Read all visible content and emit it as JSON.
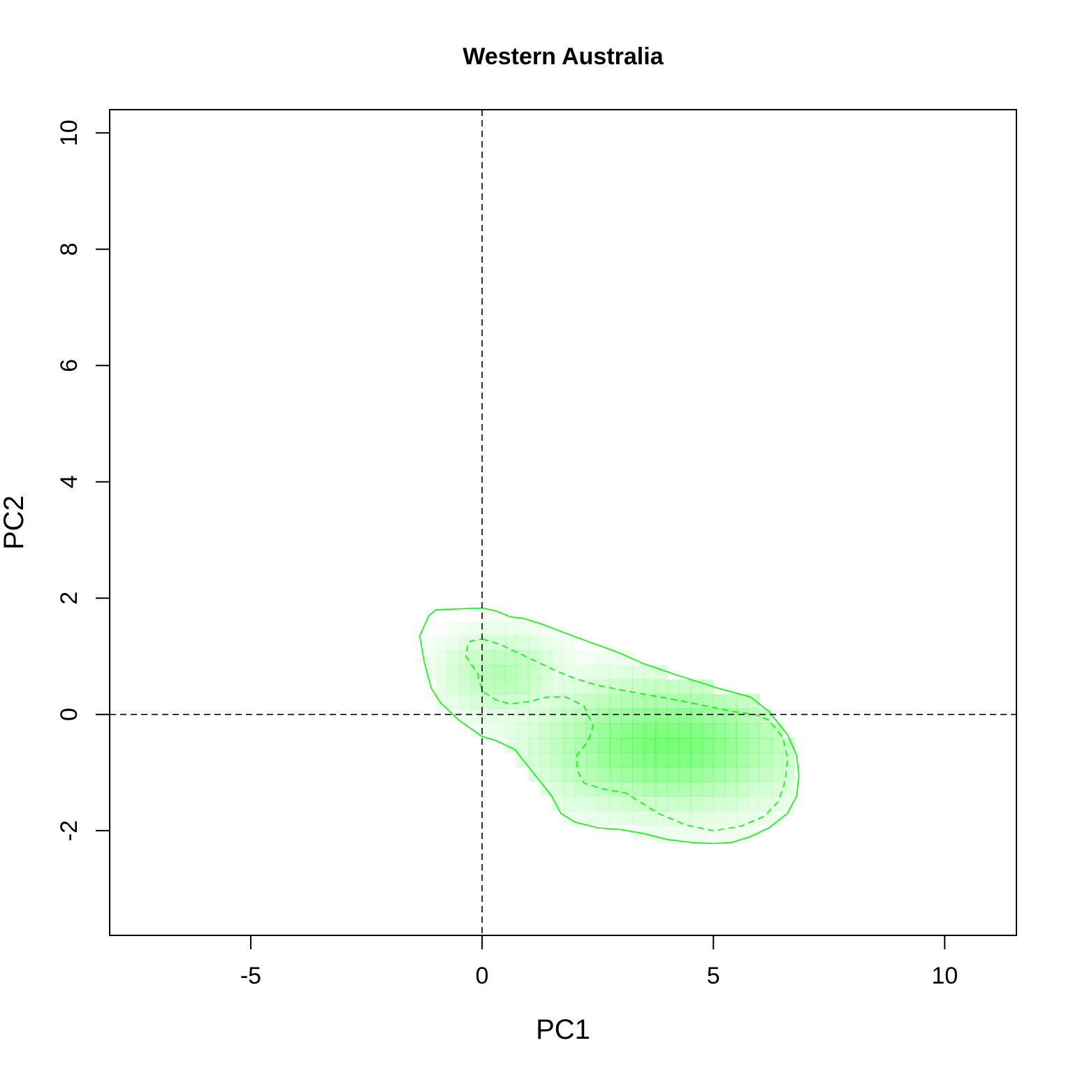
{
  "chart_data": {
    "type": "contour",
    "title": "Western Australia",
    "xlabel": "PC1",
    "ylabel": "PC2",
    "xlim": [
      -8.05,
      11.55
    ],
    "ylim": [
      -3.8,
      10.4
    ],
    "x_ticks": [
      -5,
      0,
      5,
      10
    ],
    "y_ticks": [
      -2,
      0,
      2,
      4,
      6,
      8,
      10
    ],
    "reference_lines": {
      "x": 0,
      "y": 0,
      "style": "dashed",
      "color": "#000000"
    },
    "density_color": "#00ff00",
    "density_peaks": [
      {
        "x": 4.0,
        "y": -0.5,
        "intensity": 1.0
      },
      {
        "x": 0.4,
        "y": 0.7,
        "intensity": 0.55
      }
    ],
    "contours": [
      {
        "level": "outer",
        "style": "solid",
        "color": "#00ff00",
        "points": [
          [
            -1.0,
            1.8
          ],
          [
            0,
            1.83
          ],
          [
            0.3,
            1.78
          ],
          [
            0.6,
            1.68
          ],
          [
            0.9,
            1.65
          ],
          [
            1.3,
            1.55
          ],
          [
            1.8,
            1.4
          ],
          [
            2.3,
            1.25
          ],
          [
            2.9,
            1.08
          ],
          [
            3.5,
            0.87
          ],
          [
            4.2,
            0.68
          ],
          [
            5.1,
            0.45
          ],
          [
            5.8,
            0.3
          ],
          [
            6.2,
            0.05
          ],
          [
            6.6,
            -0.35
          ],
          [
            6.8,
            -0.7
          ],
          [
            6.85,
            -1.05
          ],
          [
            6.8,
            -1.4
          ],
          [
            6.6,
            -1.7
          ],
          [
            6.2,
            -1.95
          ],
          [
            5.8,
            -2.1
          ],
          [
            5.4,
            -2.2
          ],
          [
            5.0,
            -2.22
          ],
          [
            4.5,
            -2.2
          ],
          [
            4.0,
            -2.15
          ],
          [
            3.5,
            -2.05
          ],
          [
            3.0,
            -1.98
          ],
          [
            2.5,
            -1.95
          ],
          [
            2.0,
            -1.85
          ],
          [
            1.7,
            -1.7
          ],
          [
            1.5,
            -1.4
          ],
          [
            1.1,
            -1.0
          ],
          [
            0.7,
            -0.6
          ],
          [
            0.3,
            -0.45
          ],
          [
            0,
            -0.38
          ],
          [
            -0.5,
            -0.1
          ],
          [
            -0.9,
            0.2
          ],
          [
            -1.1,
            0.45
          ],
          [
            -1.25,
            0.9
          ],
          [
            -1.35,
            1.35
          ],
          [
            -1.15,
            1.7
          ],
          [
            -1.0,
            1.8
          ]
        ]
      },
      {
        "level": "inner-left",
        "style": "dashed",
        "color": "#00ff00",
        "points": [
          [
            0.0,
            1.3
          ],
          [
            0.4,
            1.2
          ],
          [
            0.8,
            1.05
          ],
          [
            1.2,
            0.9
          ],
          [
            1.6,
            0.75
          ],
          [
            2.0,
            0.62
          ],
          [
            2.5,
            0.5
          ],
          [
            3.0,
            0.42
          ],
          [
            3.5,
            0.35
          ],
          [
            4.0,
            0.28
          ],
          [
            4.5,
            0.2
          ],
          [
            5.0,
            0.12
          ],
          [
            5.5,
            0.04
          ],
          [
            5.9,
            0.0
          ],
          [
            6.2,
            -0.1
          ],
          [
            6.5,
            -0.4
          ],
          [
            6.6,
            -0.75
          ],
          [
            6.55,
            -1.15
          ],
          [
            6.4,
            -1.5
          ],
          [
            6.1,
            -1.75
          ],
          [
            5.6,
            -1.92
          ],
          [
            5.0,
            -2.0
          ],
          [
            4.4,
            -1.9
          ],
          [
            3.8,
            -1.7
          ],
          [
            3.5,
            -1.55
          ],
          [
            3.1,
            -1.35
          ],
          [
            2.6,
            -1.28
          ],
          [
            2.2,
            -1.18
          ],
          [
            2.05,
            -0.95
          ],
          [
            2.05,
            -0.7
          ],
          [
            2.3,
            -0.45
          ],
          [
            2.4,
            -0.2
          ],
          [
            2.2,
            0.15
          ],
          [
            1.8,
            0.3
          ],
          [
            1.4,
            0.3
          ],
          [
            1.0,
            0.22
          ],
          [
            0.6,
            0.18
          ],
          [
            0.3,
            0.25
          ],
          [
            0.0,
            0.4
          ],
          [
            -0.1,
            0.7
          ],
          [
            -0.35,
            1.0
          ],
          [
            -0.3,
            1.25
          ],
          [
            0.0,
            1.3
          ]
        ]
      }
    ]
  }
}
